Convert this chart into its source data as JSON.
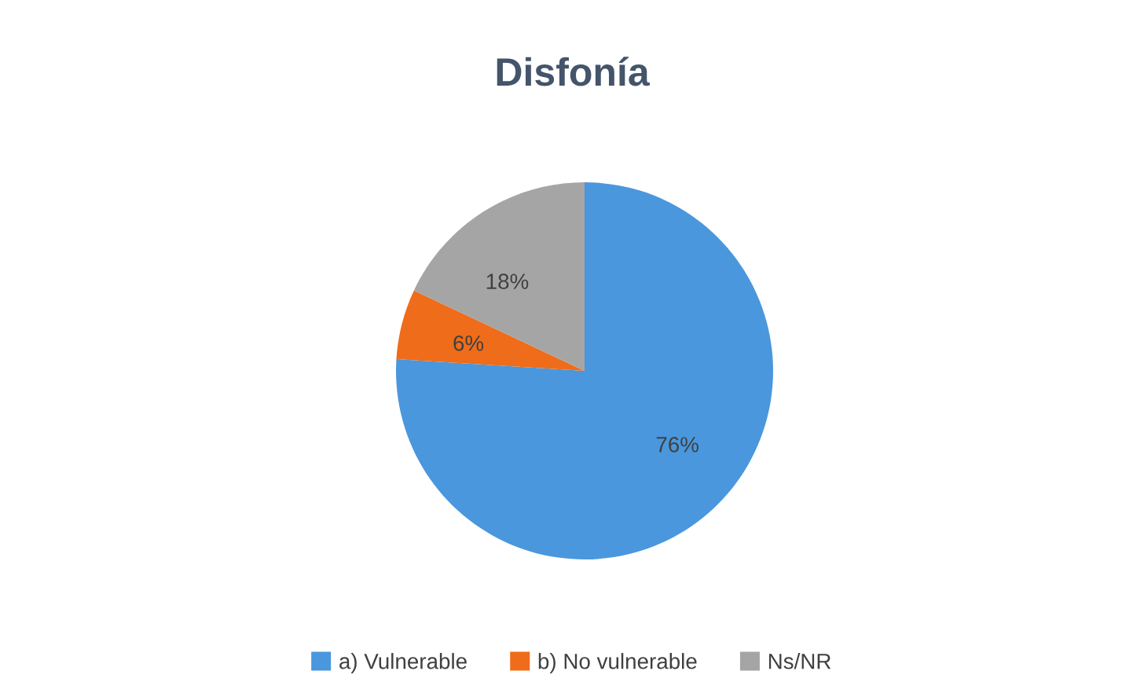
{
  "chart_data": {
    "type": "pie",
    "title": "Disfonía",
    "categories": [
      "a) Vulnerable",
      "b) No vulnerable",
      "Ns/NR"
    ],
    "values": [
      76,
      6,
      18
    ],
    "colors": [
      "#4a97dd",
      "#ef6c1a",
      "#a5a5a5"
    ],
    "value_labels": [
      "76%",
      "6%",
      "18%"
    ],
    "legend": "bottom"
  }
}
